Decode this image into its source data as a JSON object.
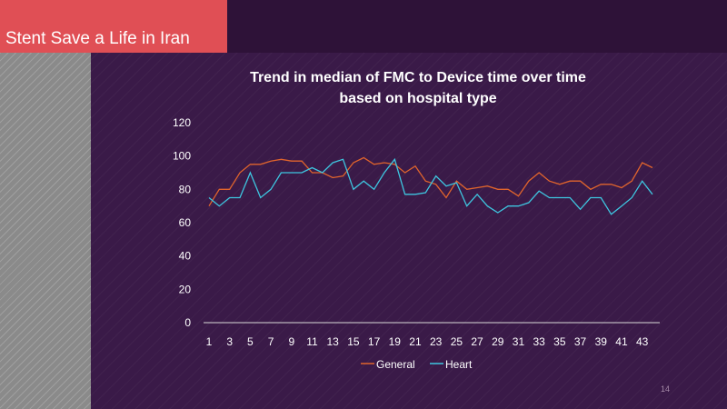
{
  "slide": {
    "header_title": "Stent Save a Life in Iran",
    "page_number": "14"
  },
  "colors": {
    "general": "#e0642c",
    "heart": "#3ec6e0",
    "title_box": "#e04f55"
  },
  "chart_data": {
    "type": "line",
    "title": "Trend in median of FMC to Device time over time based on hospital type",
    "title_lines": [
      "Trend in median of FMC to Device time over time",
      "based on hospital type"
    ],
    "xlabel": "",
    "ylabel": "",
    "ylim": [
      0,
      120
    ],
    "yticks": [
      0,
      20,
      40,
      60,
      80,
      100,
      120
    ],
    "x": [
      1,
      2,
      3,
      4,
      5,
      6,
      7,
      8,
      9,
      10,
      11,
      12,
      13,
      14,
      15,
      16,
      17,
      18,
      19,
      20,
      21,
      22,
      23,
      24,
      25,
      26,
      27,
      28,
      29,
      30,
      31,
      32,
      33,
      34,
      35,
      36,
      37,
      38,
      39,
      40,
      41,
      42,
      43,
      44
    ],
    "xtick_labels": [
      "1",
      "3",
      "5",
      "7",
      "9",
      "11",
      "13",
      "15",
      "17",
      "19",
      "21",
      "23",
      "25",
      "27",
      "29",
      "31",
      "33",
      "35",
      "37",
      "39",
      "41",
      "43"
    ],
    "legend_position": "bottom",
    "grid": false,
    "series": [
      {
        "name": "General",
        "values": [
          70,
          80,
          80,
          90,
          95,
          95,
          97,
          98,
          97,
          97,
          90,
          90,
          87,
          88,
          96,
          99,
          95,
          96,
          95,
          90,
          94,
          85,
          83,
          75,
          85,
          80,
          81,
          82,
          80,
          80,
          76,
          85,
          90,
          85,
          83,
          85,
          85,
          80,
          83,
          83,
          81,
          85,
          96,
          93
        ]
      },
      {
        "name": "Heart",
        "values": [
          75,
          70,
          75,
          75,
          90,
          75,
          80,
          90,
          90,
          90,
          93,
          90,
          96,
          98,
          80,
          85,
          80,
          90,
          98,
          77,
          77,
          78,
          88,
          82,
          84,
          70,
          77,
          70,
          66,
          70,
          70,
          72,
          79,
          75,
          75,
          75,
          68,
          75,
          75,
          65,
          70,
          75,
          85,
          77
        ]
      }
    ]
  }
}
